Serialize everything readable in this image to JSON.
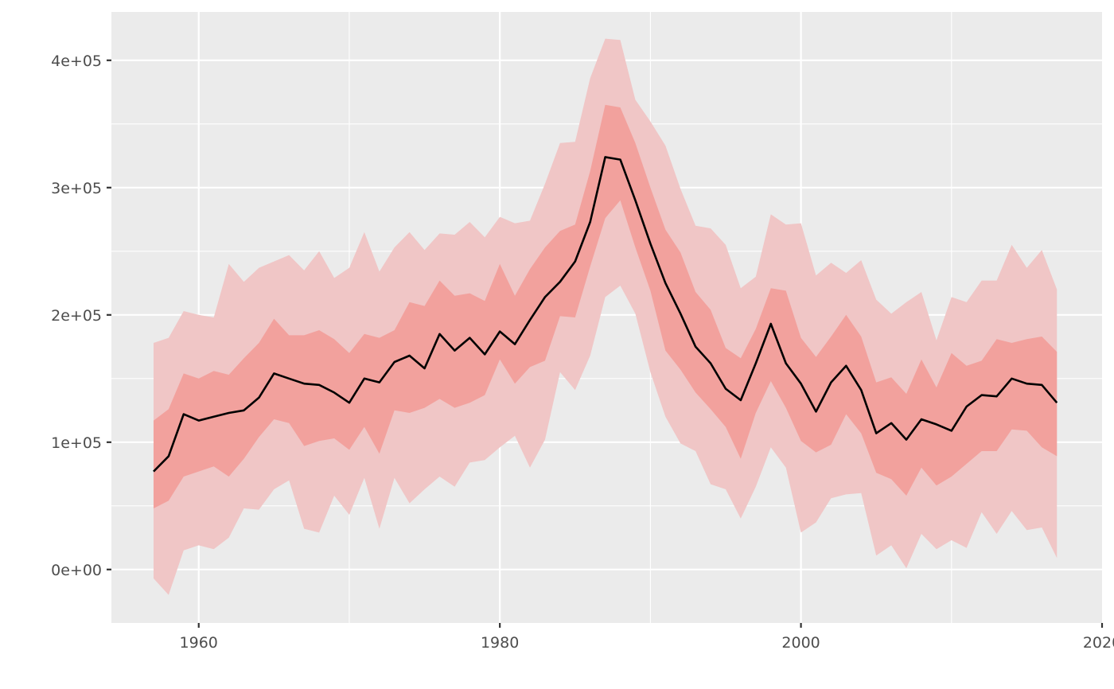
{
  "chart_data": {
    "type": "area",
    "title": "",
    "xlabel": "",
    "ylabel": "",
    "xlim": [
      1954.2,
      2020
    ],
    "ylim": [
      -42000,
      438000
    ],
    "grid": true,
    "legend": "none",
    "x_ticks": [
      {
        "value": 1960,
        "label": "1960"
      },
      {
        "value": 1980,
        "label": "1980"
      },
      {
        "value": 2000,
        "label": "2000"
      },
      {
        "value": 2020,
        "label": "2020"
      }
    ],
    "y_ticks": [
      {
        "value": 0,
        "label": "0e+00"
      },
      {
        "value": 100000,
        "label": "1e+05"
      },
      {
        "value": 200000,
        "label": "2e+05"
      },
      {
        "value": 300000,
        "label": "3e+05"
      },
      {
        "value": 400000,
        "label": "4e+05"
      }
    ],
    "colors": {
      "panel": "#ebebeb",
      "grid": "#ffffff",
      "outer_band": "#f0c6c6",
      "inner_band": "#f2a19d",
      "line": "#000000",
      "tick": "#333333"
    },
    "x": [
      1957,
      1958,
      1959,
      1960,
      1961,
      1962,
      1963,
      1964,
      1965,
      1966,
      1967,
      1968,
      1969,
      1970,
      1971,
      1972,
      1973,
      1974,
      1975,
      1976,
      1977,
      1978,
      1979,
      1980,
      1981,
      1982,
      1983,
      1984,
      1985,
      1986,
      1987,
      1988,
      1989,
      1990,
      1991,
      1992,
      1993,
      1994,
      1995,
      1996,
      1997,
      1998,
      1999,
      2000,
      2001,
      2002,
      2003,
      2004,
      2005,
      2006,
      2007,
      2008,
      2009,
      2010,
      2011,
      2012,
      2013,
      2014,
      2015,
      2016,
      2017
    ],
    "series": [
      {
        "name": "",
        "role": "line",
        "values": [
          77000,
          89000,
          122000,
          117000,
          120000,
          123000,
          125000,
          135000,
          154000,
          150000,
          146000,
          145000,
          139000,
          131000,
          150000,
          147000,
          163000,
          168000,
          158000,
          185000,
          172000,
          182000,
          169000,
          187000,
          177000,
          196000,
          214000,
          226000,
          242000,
          273000,
          324000,
          322000,
          290000,
          256000,
          225000,
          201000,
          175000,
          162000,
          142000,
          133000,
          162000,
          193000,
          162000,
          146000,
          124000,
          147000,
          160000,
          141000,
          107000,
          115000,
          102000,
          118000,
          114000,
          109000,
          128000,
          137000,
          136000,
          150000,
          146000,
          145000,
          131000
        ]
      },
      {
        "name": "",
        "role": "inner_band_lower",
        "values": [
          48000,
          54000,
          73000,
          77000,
          81000,
          73000,
          87000,
          104000,
          118000,
          115000,
          97000,
          101000,
          103000,
          94000,
          112000,
          91000,
          125000,
          123000,
          127000,
          134000,
          127000,
          131000,
          137000,
          165000,
          146000,
          159000,
          164000,
          199000,
          198000,
          238000,
          276000,
          290000,
          253000,
          219000,
          172000,
          157000,
          139000,
          126000,
          112000,
          87000,
          123000,
          148000,
          127000,
          101000,
          92000,
          98000,
          122000,
          107000,
          76000,
          71000,
          58000,
          80000,
          66000,
          73000,
          83000,
          93000,
          93000,
          110000,
          109000,
          96000,
          89000
        ]
      },
      {
        "name": "",
        "role": "inner_band_upper",
        "values": [
          117000,
          126000,
          154000,
          150000,
          156000,
          153000,
          166000,
          178000,
          197000,
          184000,
          184000,
          188000,
          181000,
          170000,
          185000,
          182000,
          188000,
          210000,
          207000,
          227000,
          215000,
          217000,
          211000,
          240000,
          215000,
          236000,
          253000,
          266000,
          271000,
          313000,
          365000,
          363000,
          335000,
          300000,
          267000,
          249000,
          218000,
          204000,
          174000,
          166000,
          189000,
          221000,
          219000,
          182000,
          167000,
          183000,
          200000,
          183000,
          147000,
          151000,
          138000,
          165000,
          143000,
          170000,
          160000,
          164000,
          181000,
          178000,
          181000,
          183000,
          171000
        ]
      },
      {
        "name": "",
        "role": "outer_band_lower",
        "values": [
          -7000,
          -20000,
          15000,
          19000,
          16000,
          25000,
          48000,
          47000,
          63000,
          70000,
          32000,
          29000,
          58000,
          43000,
          72000,
          32000,
          72000,
          52000,
          63000,
          73000,
          65000,
          84000,
          86000,
          96000,
          105000,
          80000,
          102000,
          155000,
          141000,
          168000,
          214000,
          223000,
          201000,
          155000,
          120000,
          99000,
          93000,
          67000,
          63000,
          40000,
          65000,
          96000,
          80000,
          29000,
          37000,
          56000,
          59000,
          60000,
          11000,
          19000,
          1000,
          28000,
          16000,
          23000,
          17000,
          45000,
          28000,
          46000,
          31000,
          33000,
          9000
        ]
      },
      {
        "name": "",
        "role": "outer_band_upper",
        "values": [
          178000,
          182000,
          203000,
          200000,
          198000,
          240000,
          226000,
          237000,
          242000,
          247000,
          235000,
          250000,
          229000,
          237000,
          265000,
          234000,
          253000,
          265000,
          251000,
          264000,
          263000,
          273000,
          261000,
          277000,
          272000,
          274000,
          303000,
          335000,
          336000,
          386000,
          417000,
          416000,
          369000,
          352000,
          333000,
          299000,
          270000,
          268000,
          255000,
          221000,
          230000,
          279000,
          271000,
          272000,
          231000,
          241000,
          233000,
          243000,
          212000,
          201000,
          210000,
          218000,
          180000,
          214000,
          210000,
          227000,
          227000,
          255000,
          237000,
          251000,
          220000
        ]
      }
    ]
  }
}
